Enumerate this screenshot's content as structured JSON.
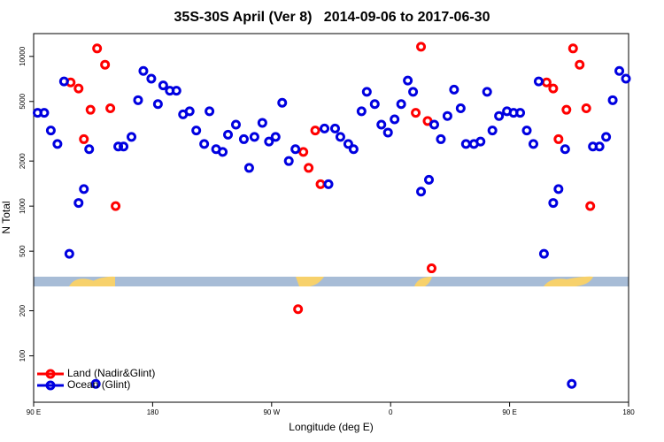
{
  "chart_data": {
    "type": "scatter",
    "title": "35S-30S April (Ver 8)   2014-09-06 to 2017-06-30",
    "x_label": "Longitude (deg E)",
    "y_label": "N Total",
    "xlim": [
      90,
      540
    ],
    "ylim": [
      49,
      14200
    ],
    "log_y": true,
    "xticks": [
      {
        "value": 90,
        "label": "90 E"
      },
      {
        "value": 180,
        "label": "180"
      },
      {
        "value": 270,
        "label": "90 W"
      },
      {
        "value": 360,
        "label": "0"
      },
      {
        "value": 450,
        "label": "90 E"
      },
      {
        "value": 540,
        "label": "180"
      }
    ],
    "yticks": [
      100,
      200,
      500,
      1000,
      2000,
      5000,
      10000
    ],
    "legend": "bottom-left",
    "series": [
      {
        "name": "Land (Nadir&Glint)",
        "color": "#ff0000",
        "x": [
          118,
          124,
          128,
          133,
          138,
          144,
          148,
          152,
          290,
          294,
          298,
          303,
          307,
          379,
          383,
          388,
          391,
          478,
          483,
          487,
          493,
          498,
          503,
          508,
          511
        ],
        "values": [
          6700,
          6100,
          2800,
          4400,
          11300,
          8800,
          4500,
          1000,
          205,
          2300,
          1800,
          3200,
          1400,
          4200,
          11600,
          3700,
          384,
          6700,
          6100,
          2800,
          4400,
          11300,
          8800,
          4500,
          1000
        ]
      },
      {
        "name": "Ocean (Glint)",
        "color": "#0000e0",
        "x": [
          93,
          98,
          103,
          108,
          113,
          117,
          124,
          128,
          132,
          137,
          154,
          158,
          164,
          169,
          173,
          179,
          184,
          188,
          193,
          198,
          203,
          208,
          213,
          219,
          223,
          228,
          233,
          237,
          243,
          249,
          253,
          257,
          263,
          268,
          273,
          278,
          283,
          288,
          310,
          313,
          318,
          322,
          328,
          332,
          338,
          342,
          348,
          353,
          358,
          363,
          368,
          373,
          377,
          383,
          389,
          393,
          398,
          403,
          408,
          413,
          417,
          423,
          428,
          433,
          437,
          442,
          448,
          453,
          458,
          463,
          468,
          472,
          476,
          483,
          487,
          492,
          497,
          513,
          518,
          523,
          528,
          533,
          538
        ],
        "values": [
          4200,
          4200,
          3200,
          2600,
          6800,
          480,
          1050,
          1300,
          2400,
          65,
          2500,
          2500,
          2900,
          5100,
          8000,
          7100,
          4800,
          6400,
          5900,
          5900,
          4100,
          4300,
          3200,
          2600,
          4300,
          2400,
          2300,
          3000,
          3500,
          2800,
          1800,
          2900,
          3600,
          2700,
          2900,
          4900,
          2000,
          2400,
          3300,
          1400,
          3300,
          2900,
          2600,
          2400,
          4300,
          5800,
          4800,
          3500,
          3100,
          3800,
          4800,
          6900,
          5800,
          1250,
          1500,
          3500,
          2800,
          4000,
          6000,
          4500,
          2600,
          2600,
          2700,
          5800,
          3200,
          4000,
          4300,
          4200,
          4200,
          3200,
          2600,
          6800,
          480,
          1050,
          1300,
          2400,
          65,
          2500,
          2500,
          2900,
          5100,
          8000,
          7100
        ]
      }
    ]
  }
}
